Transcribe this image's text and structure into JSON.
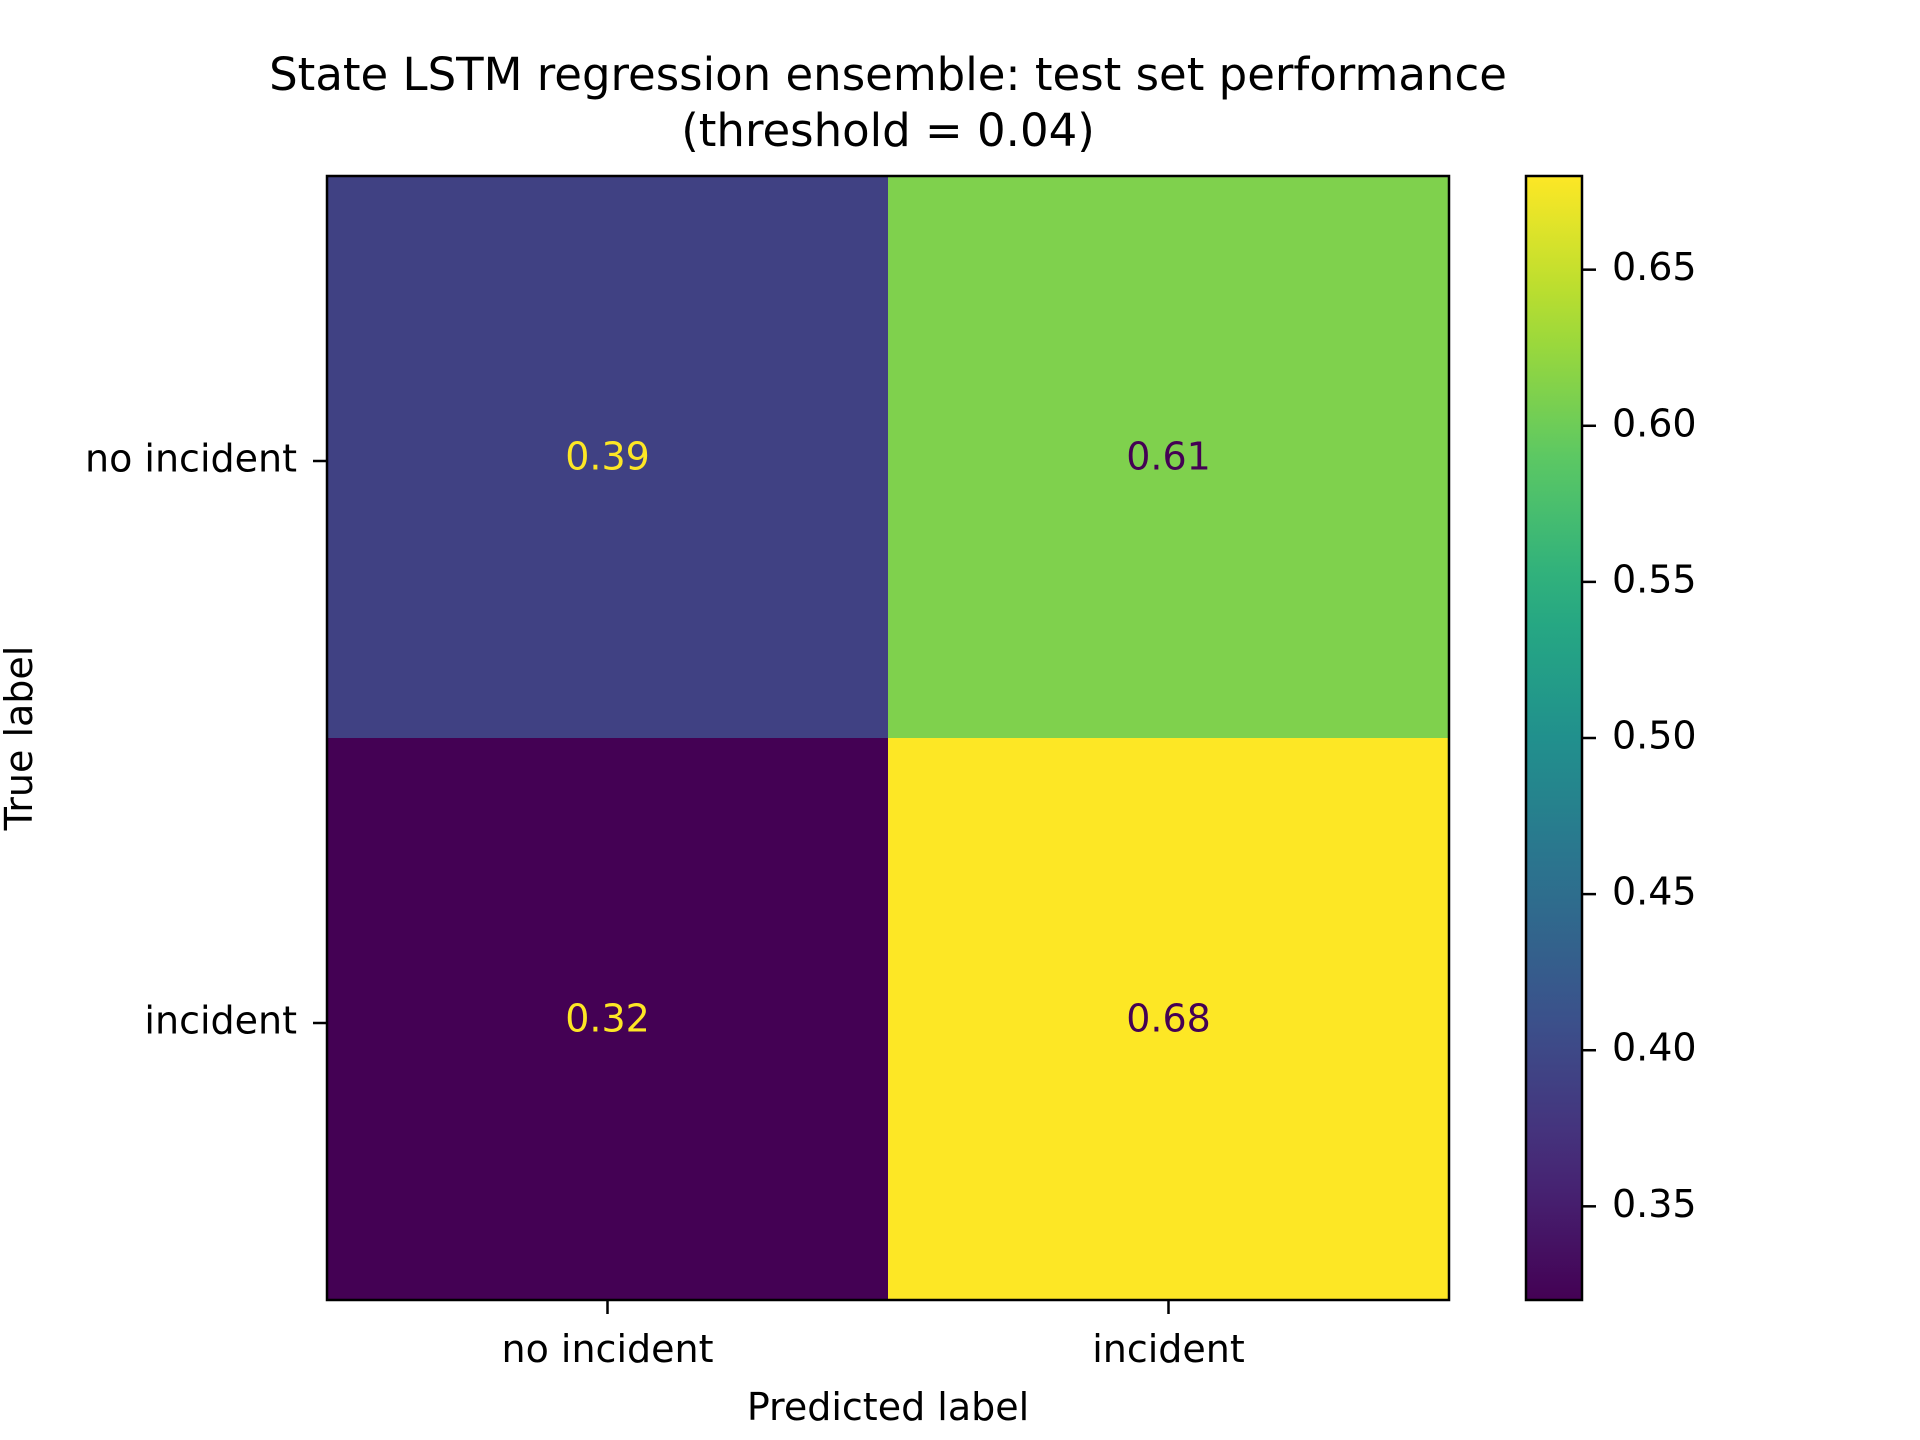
{
  "chart_data": {
    "type": "heatmap",
    "title": "State LSTM regression ensemble: test set performance",
    "subtitle": "(threshold = 0.04)",
    "xlabel": "Predicted label",
    "ylabel": "True label",
    "x_categories": [
      "no incident",
      "incident"
    ],
    "y_categories": [
      "no incident",
      "incident"
    ],
    "values": [
      [
        0.39,
        0.61
      ],
      [
        0.32,
        0.68
      ]
    ],
    "cell_labels": [
      [
        "0.39",
        "0.61"
      ],
      [
        "0.32",
        "0.68"
      ]
    ],
    "colormap": "viridis",
    "colorbar": {
      "range": [
        0.32,
        0.68
      ],
      "ticks": [
        0.35,
        0.4,
        0.45,
        0.5,
        0.55,
        0.6,
        0.65
      ],
      "tick_labels": [
        "0.35",
        "0.40",
        "0.45",
        "0.50",
        "0.55",
        "0.60",
        "0.65"
      ]
    },
    "colors": {
      "low_text": "#fde725",
      "high_text": "#440154"
    },
    "grid": false
  }
}
